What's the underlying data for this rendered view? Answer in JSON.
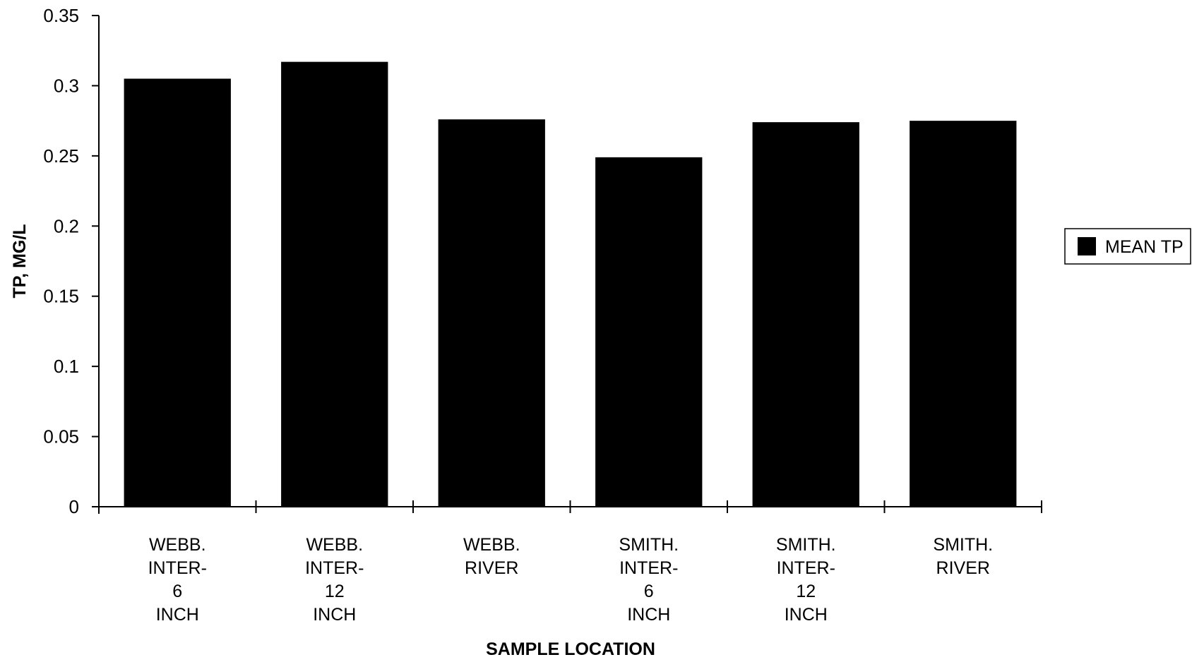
{
  "chart_data": {
    "type": "bar",
    "categories": [
      [
        "WEBB.",
        "INTER-",
        "6",
        "INCH"
      ],
      [
        "WEBB.",
        "INTER-",
        "12",
        "INCH"
      ],
      [
        "WEBB.",
        "RIVER"
      ],
      [
        "SMITH.",
        "INTER-",
        "6",
        "INCH"
      ],
      [
        "SMITH.",
        "INTER-",
        "12",
        "INCH"
      ],
      [
        "SMITH.",
        "RIVER"
      ]
    ],
    "series": [
      {
        "name": "MEAN TP",
        "color": "#000000",
        "values": [
          0.305,
          0.317,
          0.276,
          0.249,
          0.274,
          0.275
        ]
      }
    ],
    "xlabel": "SAMPLE LOCATION",
    "ylabel": "TP, MG/L",
    "ylim": [
      0,
      0.35
    ],
    "yticks": [
      "0",
      "0.05",
      "0.1",
      "0.15",
      "0.2",
      "0.25",
      "0.3",
      "0.35"
    ],
    "grid": false,
    "legend_position": "right"
  }
}
